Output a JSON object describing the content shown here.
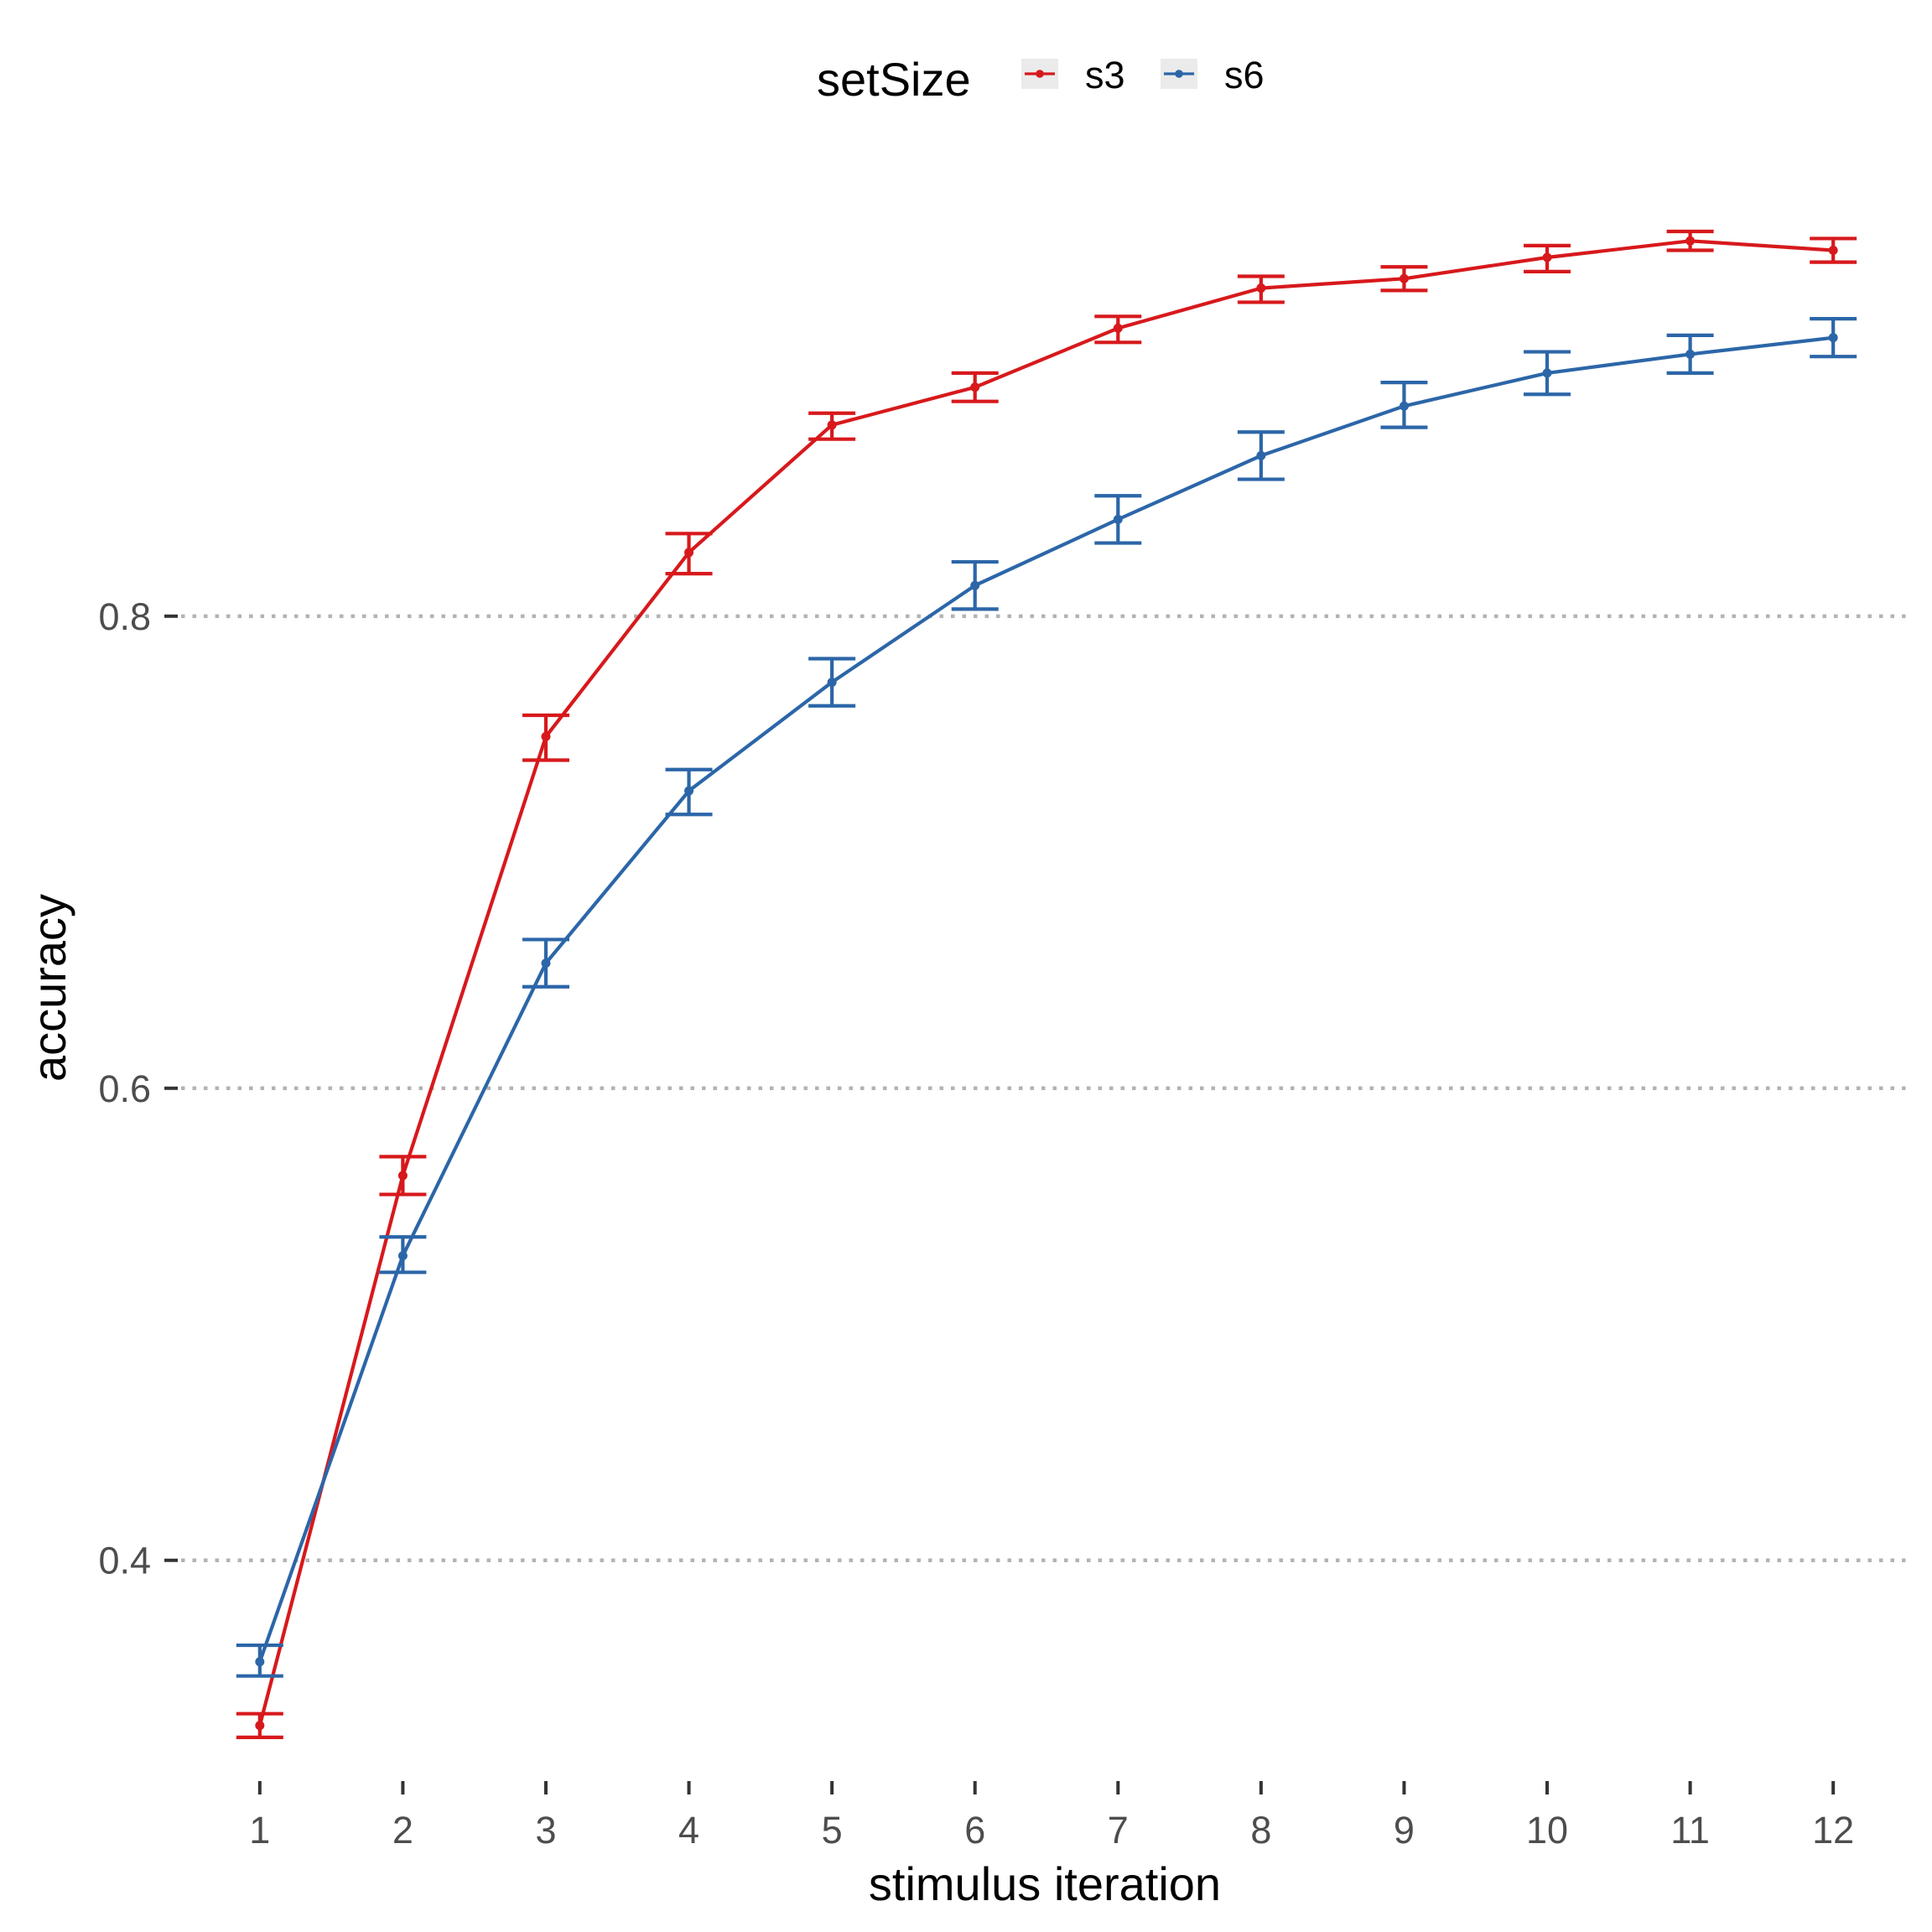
{
  "chart_data": {
    "type": "line",
    "x": [
      1,
      2,
      3,
      4,
      5,
      6,
      7,
      8,
      9,
      10,
      11,
      12
    ],
    "xlabel": "stimulus iteration",
    "ylabel": "accuracy",
    "yticks": [
      0.4,
      0.6,
      0.8
    ],
    "ylim": [
      0.315,
      0.99
    ],
    "xlim": [
      0.45,
      12.55
    ],
    "grid": "horizontal dotted major lines",
    "legend": {
      "title": "setSize",
      "placement": "top"
    },
    "series": [
      {
        "name": "s3",
        "color": "#d7191c",
        "values": [
          0.33,
          0.563,
          0.749,
          0.827,
          0.881,
          0.897,
          0.922,
          0.939,
          0.943,
          0.952,
          0.959,
          0.955
        ],
        "err_low": [
          0.325,
          0.555,
          0.739,
          0.818,
          0.875,
          0.891,
          0.916,
          0.933,
          0.938,
          0.946,
          0.955,
          0.95
        ],
        "err_high": [
          0.335,
          0.571,
          0.758,
          0.835,
          0.886,
          0.903,
          0.927,
          0.944,
          0.948,
          0.957,
          0.963,
          0.96
        ]
      },
      {
        "name": "s6",
        "color": "#2c66a8",
        "values": [
          0.357,
          0.529,
          0.653,
          0.726,
          0.772,
          0.813,
          0.841,
          0.868,
          0.889,
          0.903,
          0.911,
          0.918
        ],
        "err_low": [
          0.351,
          0.522,
          0.643,
          0.716,
          0.762,
          0.803,
          0.831,
          0.858,
          0.88,
          0.894,
          0.903,
          0.91
        ],
        "err_high": [
          0.364,
          0.537,
          0.663,
          0.735,
          0.782,
          0.823,
          0.851,
          0.878,
          0.899,
          0.912,
          0.919,
          0.926
        ]
      }
    ]
  }
}
